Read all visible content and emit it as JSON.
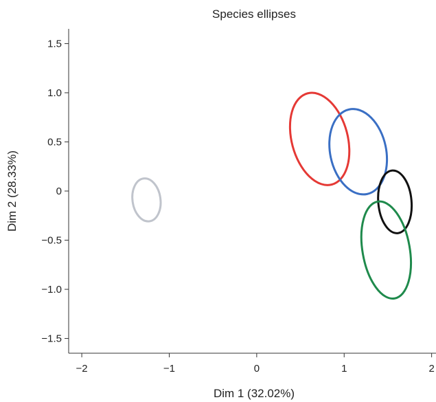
{
  "chart_data": {
    "type": "scatter",
    "title": "Species ellipses",
    "xlabel": "Dim 1 (32.02%)",
    "ylabel": "Dim 2 (28.33%)",
    "xlim": [
      -2.15,
      2.05
    ],
    "ylim": [
      -1.65,
      1.65
    ],
    "x_ticks": [
      -2,
      -1,
      0,
      1,
      2
    ],
    "x_tick_labels": [
      "−2",
      "−1",
      "0",
      "1",
      "2"
    ],
    "y_ticks": [
      1.5,
      1.0,
      0.5,
      0,
      -0.5,
      -1.0,
      -1.5
    ],
    "y_tick_labels": [
      "1.5",
      "1.0",
      "0.5",
      "0",
      "−0.5",
      "−1.0",
      "−1.5"
    ],
    "grid": false,
    "legend": "none",
    "ellipses": [
      {
        "color": "#c0c4cc",
        "cx": -1.26,
        "cy": -0.09,
        "rx": 0.16,
        "ry": 0.22,
        "rotation_deg": -8
      },
      {
        "color": "#e53935",
        "cx": 0.72,
        "cy": 0.53,
        "rx": 0.32,
        "ry": 0.48,
        "rotation_deg": -15
      },
      {
        "color": "#3a6fc4",
        "cx": 1.16,
        "cy": 0.4,
        "rx": 0.32,
        "ry": 0.44,
        "rotation_deg": -12
      },
      {
        "color": "#111111",
        "cx": 1.58,
        "cy": -0.11,
        "rx": 0.19,
        "ry": 0.32,
        "rotation_deg": -5
      },
      {
        "color": "#1f8a4c",
        "cx": 1.48,
        "cy": -0.6,
        "rx": 0.27,
        "ry": 0.5,
        "rotation_deg": -10
      }
    ]
  }
}
